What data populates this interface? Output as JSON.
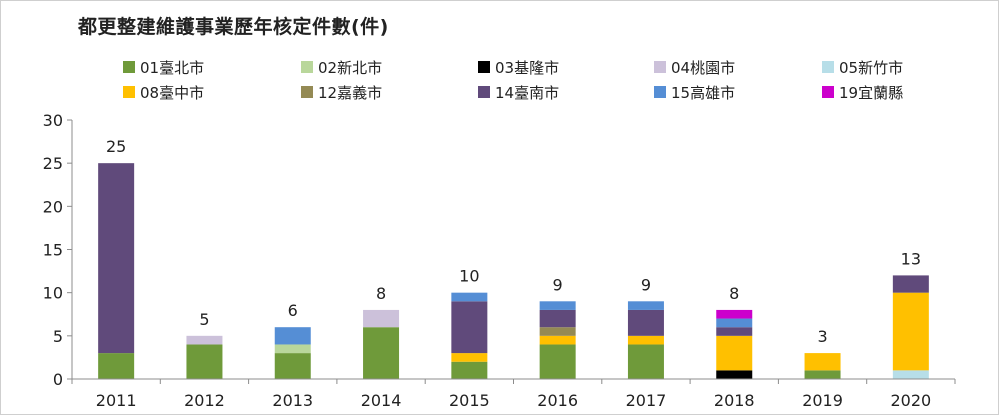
{
  "chart_data": {
    "type": "bar",
    "stacked": true,
    "title": "都更整建維護事業歷年核定件數(件)",
    "categories": [
      "2011",
      "2012",
      "2013",
      "2014",
      "2015",
      "2016",
      "2017",
      "2018",
      "2019",
      "2020"
    ],
    "ylim": [
      0,
      30
    ],
    "yticks": [
      0,
      5,
      10,
      15,
      20,
      25,
      30
    ],
    "grid": false,
    "legend_position": "top",
    "series": [
      {
        "name": "01臺北市",
        "color": "#6F9A3A",
        "values": [
          3,
          4,
          3,
          6,
          2,
          4,
          4,
          0,
          1,
          0
        ]
      },
      {
        "name": "02新北市",
        "color": "#B9D79B",
        "values": [
          0,
          0,
          1,
          0,
          0,
          0,
          0,
          0,
          0,
          0
        ]
      },
      {
        "name": "03基隆市",
        "color": "#000000",
        "values": [
          0,
          0,
          0,
          0,
          0,
          0,
          0,
          1,
          0,
          0
        ]
      },
      {
        "name": "04桃園市",
        "color": "#CCC1DA",
        "values": [
          0,
          1,
          0,
          2,
          0,
          0,
          0,
          0,
          0,
          0
        ]
      },
      {
        "name": "05新竹市",
        "color": "#B7DEE8",
        "values": [
          0,
          0,
          0,
          0,
          0,
          0,
          0,
          0,
          0,
          1
        ]
      },
      {
        "name": "08臺中市",
        "color": "#FFC000",
        "values": [
          0,
          0,
          0,
          0,
          1,
          1,
          1,
          4,
          2,
          9
        ]
      },
      {
        "name": "12嘉義市",
        "color": "#948A54",
        "values": [
          0,
          0,
          0,
          0,
          0,
          1,
          0,
          0,
          0,
          0
        ]
      },
      {
        "name": "14臺南市",
        "color": "#604A7B",
        "values": [
          22,
          0,
          0,
          0,
          6,
          2,
          3,
          1,
          0,
          2
        ]
      },
      {
        "name": "15高雄市",
        "color": "#558ED5",
        "values": [
          0,
          0,
          2,
          0,
          1,
          1,
          1,
          1,
          0,
          0
        ]
      },
      {
        "name": "19宜蘭縣",
        "color": "#CC00CC",
        "values": [
          0,
          0,
          0,
          0,
          0,
          0,
          0,
          1,
          0,
          0
        ]
      }
    ],
    "totals": [
      25,
      5,
      6,
      8,
      10,
      9,
      9,
      8,
      3,
      13
    ]
  }
}
